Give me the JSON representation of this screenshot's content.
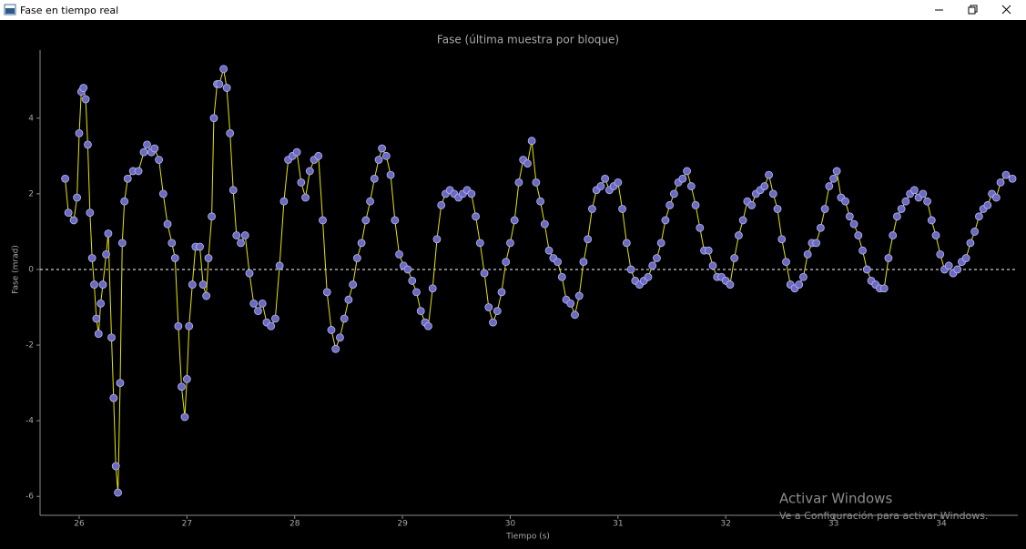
{
  "window": {
    "title": "Fase en tiempo real"
  },
  "watermark": {
    "title": "Activar Windows",
    "subtitle": "Ve a Configuración para activar Windows."
  },
  "chart_data": {
    "type": "line",
    "title": "Fase (última muestra por bloque)",
    "xlabel": "Tiempo (s)",
    "ylabel": "Fase (mrad)",
    "line_color": "#e6e600",
    "marker_color": "#6a6ac6",
    "marker_edge": "#b8b8f0",
    "zero_line": 0,
    "xlim": [
      25.637,
      34.71
    ],
    "ylim": [
      -6.5,
      5.8
    ],
    "xticks": [
      26,
      27,
      28,
      29,
      30,
      31,
      32,
      33,
      34
    ],
    "yticks": [
      -6,
      -4,
      -2,
      0,
      2,
      4
    ],
    "x": [
      25.87,
      25.9,
      25.95,
      25.98,
      26.0,
      26.02,
      26.04,
      26.06,
      26.08,
      26.1,
      26.12,
      26.14,
      26.16,
      26.18,
      26.2,
      26.22,
      26.25,
      26.27,
      26.3,
      26.32,
      26.34,
      26.36,
      26.38,
      26.4,
      26.42,
      26.45,
      26.5,
      26.55,
      26.6,
      26.63,
      26.67,
      26.7,
      26.74,
      26.78,
      26.82,
      26.86,
      26.89,
      26.92,
      26.95,
      26.98,
      27.0,
      27.02,
      27.05,
      27.08,
      27.12,
      27.15,
      27.18,
      27.2,
      27.23,
      27.25,
      27.28,
      27.3,
      27.34,
      27.37,
      27.4,
      27.43,
      27.46,
      27.5,
      27.54,
      27.58,
      27.62,
      27.66,
      27.7,
      27.74,
      27.78,
      27.82,
      27.86,
      27.9,
      27.94,
      27.98,
      28.02,
      28.06,
      28.1,
      28.14,
      28.18,
      28.22,
      28.26,
      28.3,
      28.34,
      28.38,
      28.42,
      28.46,
      28.5,
      28.54,
      28.58,
      28.62,
      28.66,
      28.7,
      28.74,
      28.78,
      28.81,
      28.85,
      28.89,
      28.93,
      28.97,
      29.01,
      29.05,
      29.09,
      29.13,
      29.17,
      29.21,
      29.24,
      29.28,
      29.32,
      29.36,
      29.4,
      29.44,
      29.48,
      29.52,
      29.56,
      29.6,
      29.64,
      29.68,
      29.72,
      29.76,
      29.8,
      29.84,
      29.88,
      29.92,
      29.96,
      30.0,
      30.04,
      30.08,
      30.12,
      30.16,
      30.2,
      30.24,
      30.28,
      30.32,
      30.36,
      30.4,
      30.44,
      30.48,
      30.52,
      30.56,
      30.6,
      30.64,
      30.68,
      30.72,
      30.76,
      30.8,
      30.84,
      30.88,
      30.92,
      30.96,
      31.0,
      31.04,
      31.08,
      31.12,
      31.16,
      31.2,
      31.24,
      31.28,
      31.32,
      31.36,
      31.4,
      31.44,
      31.48,
      31.52,
      31.56,
      31.6,
      31.64,
      31.68,
      31.72,
      31.76,
      31.8,
      31.84,
      31.88,
      31.92,
      31.96,
      32.0,
      32.04,
      32.08,
      32.12,
      32.16,
      32.2,
      32.24,
      32.28,
      32.32,
      32.36,
      32.4,
      32.44,
      32.48,
      32.52,
      32.56,
      32.6,
      32.64,
      32.68,
      32.72,
      32.76,
      32.8,
      32.84,
      32.88,
      32.92,
      32.96,
      33.0,
      33.03,
      33.07,
      33.11,
      33.15,
      33.19,
      33.23,
      33.27,
      33.31,
      33.35,
      33.39,
      33.43,
      33.47,
      33.51,
      33.55,
      33.59,
      33.63,
      33.67,
      33.71,
      33.75,
      33.79,
      33.83,
      33.87,
      33.91,
      33.95,
      33.99,
      34.03,
      34.07,
      34.11,
      34.15,
      34.19,
      34.23,
      34.27,
      34.31,
      34.35,
      34.39,
      34.43,
      34.47,
      34.51,
      34.55,
      34.6,
      34.66
    ],
    "y": [
      2.4,
      1.5,
      1.3,
      1.9,
      3.6,
      4.7,
      4.8,
      4.5,
      3.3,
      1.5,
      0.3,
      -0.4,
      -1.3,
      -1.7,
      -0.9,
      -0.4,
      0.4,
      0.95,
      -1.8,
      -3.4,
      -5.2,
      -5.9,
      -3.0,
      0.7,
      1.8,
      2.4,
      2.6,
      2.6,
      3.1,
      3.3,
      3.1,
      3.2,
      2.9,
      2.0,
      1.2,
      0.7,
      0.3,
      -1.5,
      -3.1,
      -3.9,
      -2.9,
      -1.5,
      -0.4,
      0.6,
      0.6,
      -0.4,
      -0.7,
      0.3,
      1.4,
      4.0,
      4.9,
      4.9,
      5.3,
      4.8,
      3.6,
      2.1,
      0.9,
      0.7,
      0.9,
      -0.1,
      -0.9,
      -1.1,
      -0.9,
      -1.4,
      -1.5,
      -1.3,
      0.1,
      1.8,
      2.9,
      3.0,
      3.1,
      2.3,
      1.9,
      2.6,
      2.9,
      3.0,
      1.3,
      -0.6,
      -1.6,
      -2.1,
      -1.8,
      -1.3,
      -0.8,
      -0.4,
      0.3,
      0.7,
      1.3,
      1.8,
      2.4,
      2.9,
      3.2,
      3.0,
      2.5,
      1.3,
      0.4,
      0.1,
      0.0,
      -0.3,
      -0.6,
      -1.1,
      -1.4,
      -1.5,
      -0.5,
      0.8,
      1.7,
      2.0,
      2.1,
      2.0,
      1.9,
      2.0,
      2.1,
      2.0,
      1.4,
      0.7,
      -0.1,
      -1.0,
      -1.4,
      -1.1,
      -0.6,
      0.2,
      0.7,
      1.3,
      2.3,
      2.9,
      2.8,
      3.4,
      2.3,
      1.8,
      1.2,
      0.5,
      0.3,
      0.2,
      -0.2,
      -0.8,
      -0.9,
      -1.2,
      -0.7,
      0.2,
      0.8,
      1.6,
      2.1,
      2.2,
      2.4,
      2.1,
      2.2,
      2.3,
      1.6,
      0.7,
      0.0,
      -0.3,
      -0.4,
      -0.3,
      -0.2,
      0.1,
      0.3,
      0.7,
      1.3,
      1.7,
      2.0,
      2.3,
      2.4,
      2.6,
      2.2,
      1.7,
      1.1,
      0.5,
      0.5,
      0.1,
      -0.2,
      -0.2,
      -0.3,
      -0.4,
      0.3,
      0.9,
      1.3,
      1.8,
      1.7,
      2.0,
      2.1,
      2.2,
      2.5,
      2.0,
      1.6,
      0.8,
      0.2,
      -0.4,
      -0.5,
      -0.4,
      -0.2,
      0.4,
      0.7,
      0.7,
      1.1,
      1.6,
      2.2,
      2.4,
      2.6,
      1.9,
      1.8,
      1.4,
      1.2,
      0.9,
      0.5,
      0.0,
      -0.3,
      -0.4,
      -0.5,
      -0.5,
      0.3,
      0.9,
      1.4,
      1.6,
      1.8,
      2.0,
      2.1,
      1.9,
      2.0,
      1.8,
      1.3,
      0.9,
      0.4,
      0.0,
      0.1,
      -0.1,
      0.0,
      0.2,
      0.3,
      0.7,
      1.0,
      1.4,
      1.6,
      1.7,
      2.0,
      1.9,
      2.3,
      2.5,
      2.4
    ]
  }
}
